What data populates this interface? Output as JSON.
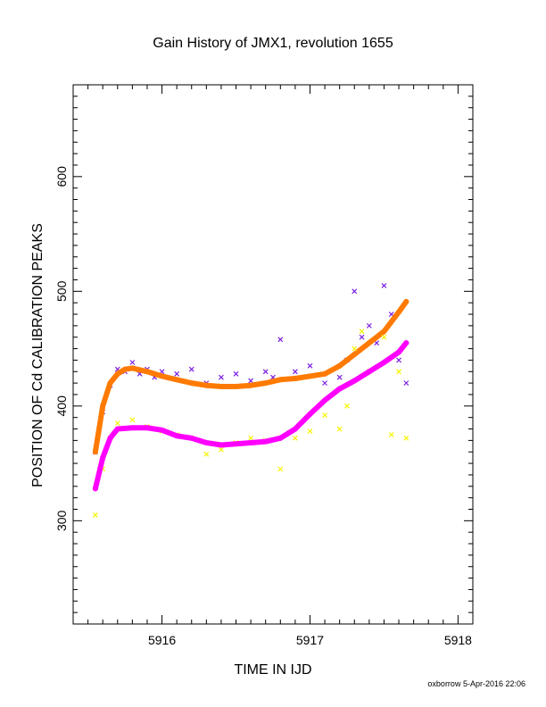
{
  "chart_data": {
    "type": "scatter",
    "title": "Gain History of JMX1, revolution 1655",
    "xlabel": "TIME IN IJD",
    "ylabel": "POSITION OF Cd CALIBRATION PEAKS",
    "footer": "oxborrow  5-Apr-2016 22:06",
    "xlim": [
      5915.4,
      5918.1
    ],
    "ylim": [
      210,
      680
    ],
    "x_ticks": [
      5916,
      5917,
      5918
    ],
    "y_ticks": [
      300,
      400,
      500,
      600
    ],
    "x_tick_labels": [
      "5916",
      "5917",
      "5918"
    ],
    "y_tick_labels": [
      "300",
      "400",
      "500",
      "600"
    ],
    "grid": false,
    "colors": {
      "upper_points": "#7B1FE0",
      "upper_fit": "#FF7A00",
      "lower_points": "#F5F500",
      "lower_fit": "#FF00FF"
    },
    "series": [
      {
        "role": "upper_points",
        "x": [
          5915.55,
          5915.6,
          5915.65,
          5915.7,
          5915.75,
          5915.8,
          5915.85,
          5915.9,
          5915.95,
          5916.0,
          5916.1,
          5916.2,
          5916.3,
          5916.4,
          5916.5,
          5916.6,
          5916.7,
          5916.75,
          5916.8,
          5916.9,
          5917.0,
          5917.1,
          5917.2,
          5917.25,
          5917.3,
          5917.35,
          5917.4,
          5917.45,
          5917.5,
          5917.55,
          5917.6,
          5917.65
        ],
        "y": [
          360,
          395,
          418,
          432,
          430,
          438,
          428,
          432,
          425,
          430,
          428,
          432,
          420,
          425,
          428,
          422,
          430,
          425,
          458,
          430,
          435,
          420,
          425,
          440,
          500,
          460,
          470,
          455,
          505,
          480,
          440,
          420
        ]
      },
      {
        "role": "upper_fit",
        "x": [
          5915.55,
          5915.6,
          5915.65,
          5915.7,
          5915.75,
          5915.8,
          5915.9,
          5916.0,
          5916.1,
          5916.2,
          5916.3,
          5916.4,
          5916.5,
          5916.6,
          5916.7,
          5916.8,
          5916.9,
          5917.0,
          5917.1,
          5917.2,
          5917.3,
          5917.4,
          5917.5,
          5917.6,
          5917.65
        ],
        "y": [
          360,
          400,
          420,
          428,
          432,
          433,
          430,
          426,
          423,
          420,
          418,
          417,
          417,
          418,
          420,
          423,
          424,
          426,
          428,
          435,
          445,
          455,
          465,
          482,
          491
        ]
      },
      {
        "role": "lower_points",
        "x": [
          5915.55,
          5915.6,
          5915.65,
          5915.7,
          5915.8,
          5915.9,
          5916.0,
          5916.1,
          5916.2,
          5916.3,
          5916.4,
          5916.5,
          5916.6,
          5916.7,
          5916.8,
          5916.9,
          5917.0,
          5917.1,
          5917.2,
          5917.25,
          5917.3,
          5917.35,
          5917.4,
          5917.5,
          5917.55,
          5917.6,
          5917.65
        ],
        "y": [
          305,
          345,
          372,
          385,
          388,
          382,
          378,
          375,
          372,
          358,
          362,
          368,
          372,
          370,
          345,
          372,
          378,
          392,
          380,
          400,
          450,
          465,
          430,
          460,
          375,
          430,
          372
        ]
      },
      {
        "role": "lower_fit",
        "x": [
          5915.55,
          5915.6,
          5915.65,
          5915.7,
          5915.8,
          5915.9,
          5916.0,
          5916.1,
          5916.2,
          5916.3,
          5916.4,
          5916.5,
          5916.6,
          5916.7,
          5916.8,
          5916.9,
          5917.0,
          5917.1,
          5917.2,
          5917.3,
          5917.4,
          5917.5,
          5917.6,
          5917.65
        ],
        "y": [
          328,
          355,
          372,
          380,
          381,
          381,
          379,
          374,
          372,
          368,
          366,
          367,
          368,
          369,
          372,
          380,
          393,
          405,
          415,
          422,
          430,
          438,
          447,
          455
        ]
      }
    ]
  }
}
